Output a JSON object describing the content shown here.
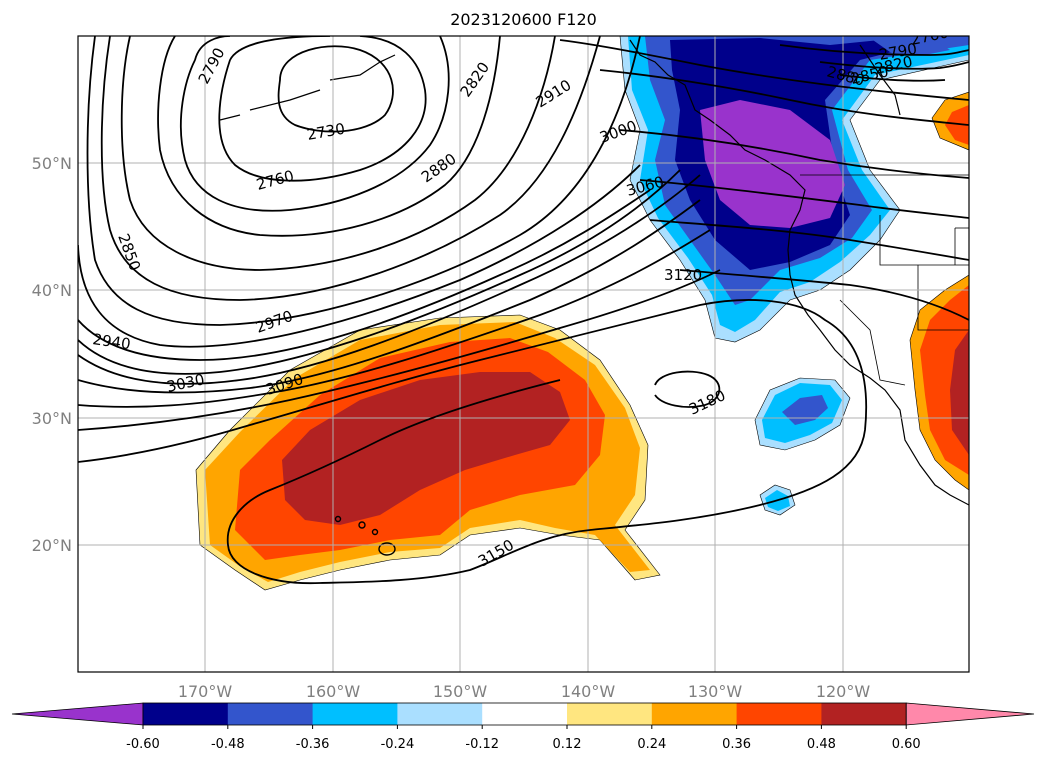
{
  "title": "2023120600 F120",
  "lat_labels": [
    "50°N",
    "40°N",
    "30°N",
    "20°N"
  ],
  "lon_labels": [
    "170°W",
    "160°W",
    "150°W",
    "140°W",
    "130°W",
    "120°W"
  ],
  "contour_labels": [
    "2790",
    "2820",
    "2910",
    "2730",
    "2760",
    "2880",
    "3000",
    "3060",
    "2850",
    "2940",
    "2970",
    "3030",
    "3090",
    "3120",
    "3180",
    "3150",
    "2760",
    "2790",
    "2820",
    "2850",
    "2880"
  ],
  "colorbar": {
    "ticks": [
      "-0.60",
      "-0.48",
      "-0.36",
      "-0.24",
      "-0.12",
      "0.12",
      "0.24",
      "0.36",
      "0.48",
      "0.60"
    ],
    "colors": [
      "#9933cc",
      "#00008b",
      "#3355cc",
      "#00bfff",
      "#aadfff",
      "#ffffff",
      "#ffe680",
      "#ffa500",
      "#ff4500",
      "#b22222",
      "#ff88aa"
    ]
  }
}
